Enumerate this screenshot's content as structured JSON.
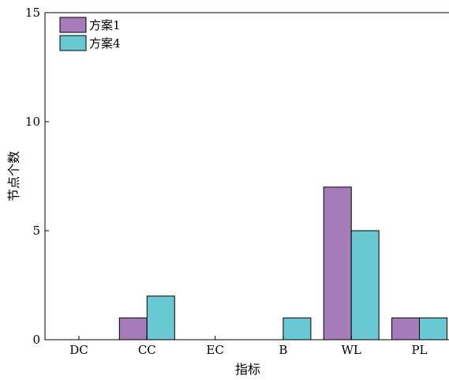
{
  "chart_data": {
    "type": "bar",
    "title": "",
    "xlabel": "指标",
    "ylabel": "节点个数",
    "categories": [
      "DC",
      "CC",
      "EC",
      "B",
      "WL",
      "PL"
    ],
    "series": [
      {
        "name": "方案1",
        "color": "#a57cb9",
        "values": [
          0,
          1,
          0,
          0,
          7,
          1
        ]
      },
      {
        "name": "方案4",
        "color": "#69c9d3",
        "values": [
          0,
          2,
          0,
          1,
          5,
          1
        ]
      }
    ],
    "ylim": [
      0,
      15
    ],
    "yticks": [
      0,
      5,
      10,
      15
    ],
    "grid": false,
    "legend_position": "top-left"
  }
}
